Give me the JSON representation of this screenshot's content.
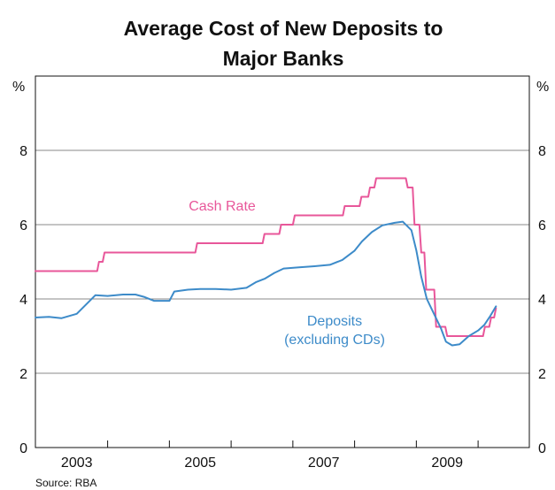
{
  "chart_data": {
    "type": "line",
    "title_lines": [
      "Average Cost of New Deposits to",
      "Major Banks"
    ],
    "unit_left": "%",
    "unit_right": "%",
    "ylim": [
      0,
      10
    ],
    "y_ticks": [
      0,
      2,
      4,
      6,
      8
    ],
    "y_tick_labels": [
      "0",
      "2",
      "4",
      "6",
      "8"
    ],
    "xlim": [
      2002.33,
      2010.33
    ],
    "x_tick_labels": [
      {
        "label": "2003",
        "x": 2003.0
      },
      {
        "label": "2005",
        "x": 2005.0
      },
      {
        "label": "2007",
        "x": 2007.0
      },
      {
        "label": "2009",
        "x": 2009.0
      }
    ],
    "year_boundaries": [
      2003.5,
      2004.5,
      2005.5,
      2006.5,
      2007.5,
      2008.5,
      2009.5
    ],
    "grid_lines": [
      2,
      4,
      6,
      8
    ],
    "series": [
      {
        "name": "Cash Rate",
        "label_lines": [
          "Cash Rate"
        ],
        "color": "#e8579a",
        "step": true,
        "points": [
          [
            2002.33,
            4.75
          ],
          [
            2003.33,
            4.75
          ],
          [
            2003.36,
            5.0
          ],
          [
            2003.42,
            5.0
          ],
          [
            2003.45,
            5.25
          ],
          [
            2004.92,
            5.25
          ],
          [
            2004.95,
            5.5
          ],
          [
            2006.01,
            5.5
          ],
          [
            2006.04,
            5.75
          ],
          [
            2006.28,
            5.75
          ],
          [
            2006.31,
            6.0
          ],
          [
            2006.5,
            6.0
          ],
          [
            2006.53,
            6.25
          ],
          [
            2007.31,
            6.25
          ],
          [
            2007.34,
            6.5
          ],
          [
            2007.58,
            6.5
          ],
          [
            2007.61,
            6.75
          ],
          [
            2007.72,
            6.75
          ],
          [
            2007.75,
            7.0
          ],
          [
            2007.82,
            7.0
          ],
          [
            2007.85,
            7.25
          ],
          [
            2008.33,
            7.25
          ],
          [
            2008.36,
            7.0
          ],
          [
            2008.44,
            7.0
          ],
          [
            2008.47,
            6.0
          ],
          [
            2008.55,
            6.0
          ],
          [
            2008.58,
            5.25
          ],
          [
            2008.63,
            5.25
          ],
          [
            2008.66,
            4.25
          ],
          [
            2008.79,
            4.25
          ],
          [
            2008.82,
            3.25
          ],
          [
            2008.97,
            3.25
          ],
          [
            2009.0,
            3.0
          ],
          [
            2009.58,
            3.0
          ],
          [
            2009.61,
            3.25
          ],
          [
            2009.68,
            3.25
          ],
          [
            2009.71,
            3.5
          ],
          [
            2009.76,
            3.5
          ],
          [
            2009.79,
            3.75
          ]
        ]
      },
      {
        "name": "Deposits (excluding CDs)",
        "label_lines": [
          "Deposits",
          "(excluding CDs)"
        ],
        "color": "#3d8bc9",
        "step": false,
        "points": [
          [
            2002.33,
            3.5
          ],
          [
            2002.55,
            3.52
          ],
          [
            2002.75,
            3.48
          ],
          [
            2003.0,
            3.6
          ],
          [
            2003.15,
            3.85
          ],
          [
            2003.3,
            4.1
          ],
          [
            2003.5,
            4.08
          ],
          [
            2003.75,
            4.12
          ],
          [
            2003.95,
            4.12
          ],
          [
            2004.1,
            4.05
          ],
          [
            2004.25,
            3.95
          ],
          [
            2004.5,
            3.95
          ],
          [
            2004.58,
            4.2
          ],
          [
            2004.8,
            4.25
          ],
          [
            2005.0,
            4.27
          ],
          [
            2005.25,
            4.27
          ],
          [
            2005.5,
            4.25
          ],
          [
            2005.75,
            4.3
          ],
          [
            2005.9,
            4.45
          ],
          [
            2006.05,
            4.55
          ],
          [
            2006.2,
            4.7
          ],
          [
            2006.35,
            4.82
          ],
          [
            2006.6,
            4.85
          ],
          [
            2006.85,
            4.88
          ],
          [
            2007.1,
            4.92
          ],
          [
            2007.3,
            5.05
          ],
          [
            2007.5,
            5.3
          ],
          [
            2007.62,
            5.55
          ],
          [
            2007.78,
            5.8
          ],
          [
            2007.95,
            5.98
          ],
          [
            2008.15,
            6.05
          ],
          [
            2008.28,
            6.08
          ],
          [
            2008.42,
            5.85
          ],
          [
            2008.5,
            5.3
          ],
          [
            2008.58,
            4.6
          ],
          [
            2008.67,
            4.0
          ],
          [
            2008.8,
            3.55
          ],
          [
            2008.9,
            3.2
          ],
          [
            2008.98,
            2.85
          ],
          [
            2009.08,
            2.75
          ],
          [
            2009.2,
            2.78
          ],
          [
            2009.35,
            3.0
          ],
          [
            2009.5,
            3.15
          ],
          [
            2009.6,
            3.3
          ],
          [
            2009.7,
            3.55
          ],
          [
            2009.79,
            3.8
          ]
        ]
      }
    ],
    "source": "Source: RBA"
  }
}
